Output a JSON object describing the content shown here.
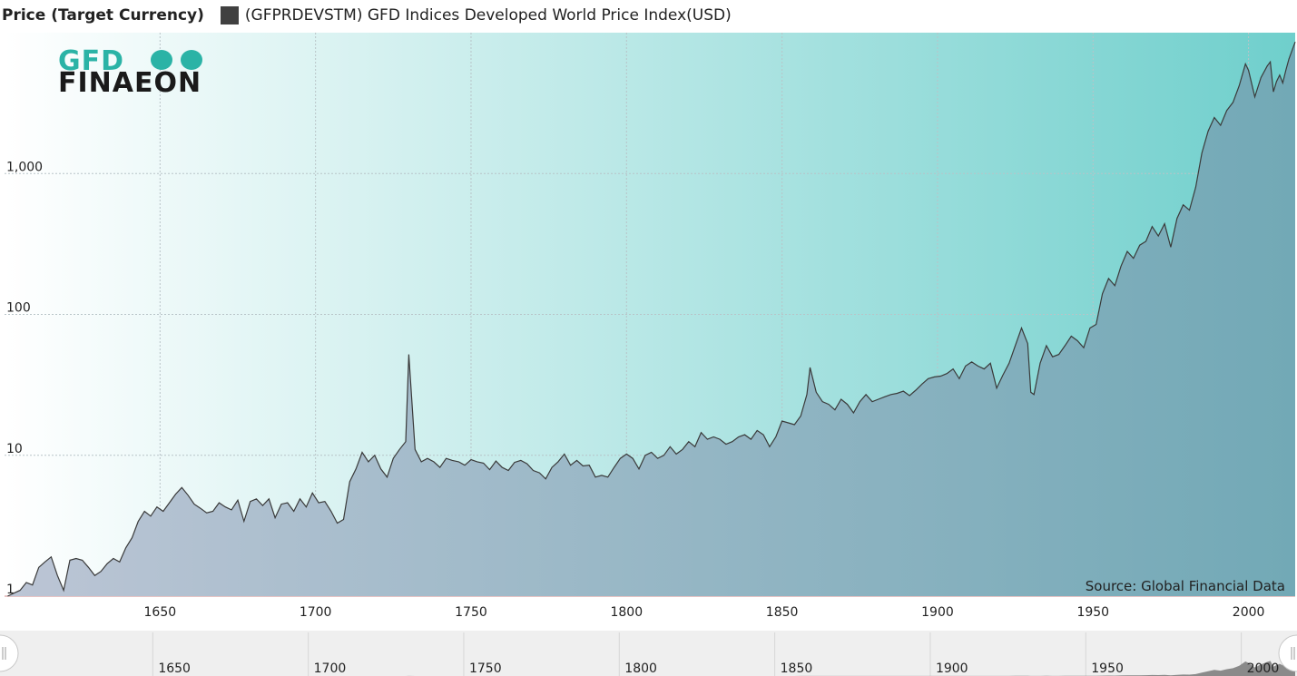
{
  "header": {
    "y_axis_title": "Price (Target Currency)",
    "legend_label": "(GFPRDEVSTM) GFD Indices Developed World Price Index(USD)",
    "legend_color": "#404040"
  },
  "logo": {
    "line1": "GFD",
    "line2": "FINAEON"
  },
  "source_note": "Source: Global Financial Data",
  "colors": {
    "background_left": "#ffffff",
    "background_right": "#6fcfcc",
    "area_left": "#bcc5d5",
    "area_right": "#72a9b6",
    "line": "#3a3a3a",
    "navigator_bg": "#efefef"
  },
  "chart_data": {
    "type": "area",
    "scale": "log",
    "grid": true,
    "xlabel": "",
    "ylabel": "Price (Target Currency)",
    "xlim": [
      1600,
      2015
    ],
    "ylim": [
      1,
      10000
    ],
    "x_ticks": [
      1650,
      1700,
      1750,
      1800,
      1850,
      1900,
      1950,
      2000
    ],
    "y_ticks": [
      {
        "value": 1,
        "label": "1"
      },
      {
        "value": 10,
        "label": "10"
      },
      {
        "value": 100,
        "label": "100"
      },
      {
        "value": 1000,
        "label": "1,000"
      }
    ],
    "navigator_ticks": [
      1650,
      1700,
      1750,
      1800,
      1850,
      1900,
      1950,
      2000
    ],
    "series": [
      {
        "name": "(GFPRDEVSTM) GFD Indices Developed World Price Index(USD)",
        "points": [
          [
            1601,
            1.0
          ],
          [
            1603,
            1.05
          ],
          [
            1605,
            1.1
          ],
          [
            1607,
            1.25
          ],
          [
            1609,
            1.2
          ],
          [
            1611,
            1.6
          ],
          [
            1613,
            1.75
          ],
          [
            1615,
            1.9
          ],
          [
            1617,
            1.4
          ],
          [
            1619,
            1.1
          ],
          [
            1621,
            1.8
          ],
          [
            1623,
            1.85
          ],
          [
            1625,
            1.8
          ],
          [
            1627,
            1.6
          ],
          [
            1629,
            1.4
          ],
          [
            1631,
            1.5
          ],
          [
            1633,
            1.7
          ],
          [
            1635,
            1.85
          ],
          [
            1637,
            1.75
          ],
          [
            1639,
            2.2
          ],
          [
            1641,
            2.6
          ],
          [
            1643,
            3.4
          ],
          [
            1645,
            4.0
          ],
          [
            1647,
            3.7
          ],
          [
            1649,
            4.3
          ],
          [
            1651,
            4.0
          ],
          [
            1653,
            4.6
          ],
          [
            1655,
            5.3
          ],
          [
            1657,
            5.9
          ],
          [
            1659,
            5.2
          ],
          [
            1661,
            4.5
          ],
          [
            1663,
            4.2
          ],
          [
            1665,
            3.9
          ],
          [
            1667,
            4.0
          ],
          [
            1669,
            4.6
          ],
          [
            1671,
            4.3
          ],
          [
            1673,
            4.1
          ],
          [
            1675,
            4.8
          ],
          [
            1677,
            3.4
          ],
          [
            1679,
            4.7
          ],
          [
            1681,
            4.9
          ],
          [
            1683,
            4.4
          ],
          [
            1685,
            4.9
          ],
          [
            1687,
            3.6
          ],
          [
            1689,
            4.5
          ],
          [
            1691,
            4.6
          ],
          [
            1693,
            4.0
          ],
          [
            1695,
            4.9
          ],
          [
            1697,
            4.3
          ],
          [
            1699,
            5.4
          ],
          [
            1701,
            4.6
          ],
          [
            1703,
            4.7
          ],
          [
            1705,
            4.0
          ],
          [
            1707,
            3.3
          ],
          [
            1709,
            3.5
          ],
          [
            1711,
            6.5
          ],
          [
            1713,
            8.0
          ],
          [
            1715,
            10.5
          ],
          [
            1717,
            9.0
          ],
          [
            1719,
            10.0
          ],
          [
            1721,
            8.0
          ],
          [
            1723,
            7.0
          ],
          [
            1725,
            9.5
          ],
          [
            1727,
            11.0
          ],
          [
            1729,
            12.5
          ],
          [
            1730,
            52.0
          ],
          [
            1732,
            11.0
          ],
          [
            1734,
            9.0
          ],
          [
            1736,
            9.5
          ],
          [
            1738,
            9.0
          ],
          [
            1740,
            8.2
          ],
          [
            1742,
            9.5
          ],
          [
            1744,
            9.2
          ],
          [
            1746,
            9.0
          ],
          [
            1748,
            8.5
          ],
          [
            1750,
            9.3
          ],
          [
            1752,
            9.0
          ],
          [
            1754,
            8.8
          ],
          [
            1756,
            7.9
          ],
          [
            1758,
            9.1
          ],
          [
            1760,
            8.2
          ],
          [
            1762,
            7.8
          ],
          [
            1764,
            8.9
          ],
          [
            1766,
            9.2
          ],
          [
            1768,
            8.7
          ],
          [
            1770,
            7.8
          ],
          [
            1772,
            7.5
          ],
          [
            1774,
            6.8
          ],
          [
            1776,
            8.2
          ],
          [
            1778,
            9.0
          ],
          [
            1780,
            10.2
          ],
          [
            1782,
            8.5
          ],
          [
            1784,
            9.2
          ],
          [
            1786,
            8.4
          ],
          [
            1788,
            8.5
          ],
          [
            1790,
            7.0
          ],
          [
            1792,
            7.2
          ],
          [
            1794,
            7.0
          ],
          [
            1796,
            8.2
          ],
          [
            1798,
            9.5
          ],
          [
            1800,
            10.2
          ],
          [
            1802,
            9.5
          ],
          [
            1804,
            8.0
          ],
          [
            1806,
            10.0
          ],
          [
            1808,
            10.5
          ],
          [
            1810,
            9.5
          ],
          [
            1812,
            10.0
          ],
          [
            1814,
            11.5
          ],
          [
            1816,
            10.2
          ],
          [
            1818,
            11.0
          ],
          [
            1820,
            12.5
          ],
          [
            1822,
            11.5
          ],
          [
            1824,
            14.5
          ],
          [
            1826,
            13.0
          ],
          [
            1828,
            13.5
          ],
          [
            1830,
            13.0
          ],
          [
            1832,
            12.0
          ],
          [
            1834,
            12.5
          ],
          [
            1836,
            13.5
          ],
          [
            1838,
            14.0
          ],
          [
            1840,
            13.0
          ],
          [
            1842,
            15.0
          ],
          [
            1844,
            14.0
          ],
          [
            1846,
            11.5
          ],
          [
            1848,
            13.5
          ],
          [
            1850,
            17.5
          ],
          [
            1852,
            17.0
          ],
          [
            1854,
            16.5
          ],
          [
            1856,
            19.0
          ],
          [
            1858,
            27.0
          ],
          [
            1859,
            42.0
          ],
          [
            1861,
            28.0
          ],
          [
            1863,
            24.0
          ],
          [
            1865,
            23.0
          ],
          [
            1867,
            21.0
          ],
          [
            1869,
            25.0
          ],
          [
            1871,
            23.0
          ],
          [
            1873,
            20.0
          ],
          [
            1875,
            24.0
          ],
          [
            1877,
            27.0
          ],
          [
            1879,
            24.0
          ],
          [
            1881,
            25.0
          ],
          [
            1883,
            26.0
          ],
          [
            1885,
            27.0
          ],
          [
            1887,
            27.5
          ],
          [
            1889,
            28.5
          ],
          [
            1891,
            26.5
          ],
          [
            1893,
            29.0
          ],
          [
            1895,
            32.0
          ],
          [
            1897,
            35.0
          ],
          [
            1899,
            36.0
          ],
          [
            1901,
            36.5
          ],
          [
            1903,
            38.0
          ],
          [
            1905,
            41.0
          ],
          [
            1907,
            35.0
          ],
          [
            1909,
            43.0
          ],
          [
            1911,
            46.0
          ],
          [
            1913,
            43.0
          ],
          [
            1915,
            41.0
          ],
          [
            1917,
            45.0
          ],
          [
            1919,
            30.0
          ],
          [
            1921,
            37.0
          ],
          [
            1923,
            45.0
          ],
          [
            1925,
            60.0
          ],
          [
            1927,
            80.0
          ],
          [
            1929,
            62.0
          ],
          [
            1930,
            28.0
          ],
          [
            1931,
            27.0
          ],
          [
            1933,
            45.0
          ],
          [
            1935,
            60.0
          ],
          [
            1937,
            50.0
          ],
          [
            1939,
            52.0
          ],
          [
            1941,
            60.0
          ],
          [
            1943,
            70.0
          ],
          [
            1945,
            65.0
          ],
          [
            1947,
            58.0
          ],
          [
            1949,
            80.0
          ],
          [
            1951,
            85.0
          ],
          [
            1953,
            140.0
          ],
          [
            1955,
            180.0
          ],
          [
            1957,
            160.0
          ],
          [
            1959,
            220.0
          ],
          [
            1961,
            280.0
          ],
          [
            1963,
            250.0
          ],
          [
            1965,
            310.0
          ],
          [
            1967,
            330.0
          ],
          [
            1969,
            420.0
          ],
          [
            1971,
            360.0
          ],
          [
            1973,
            440.0
          ],
          [
            1975,
            300.0
          ],
          [
            1977,
            480.0
          ],
          [
            1979,
            600.0
          ],
          [
            1981,
            550.0
          ],
          [
            1983,
            800.0
          ],
          [
            1985,
            1400.0
          ],
          [
            1987,
            2000.0
          ],
          [
            1989,
            2500.0
          ],
          [
            1991,
            2200.0
          ],
          [
            1993,
            2800.0
          ],
          [
            1995,
            3200.0
          ],
          [
            1997,
            4200.0
          ],
          [
            1999,
            6000.0
          ],
          [
            2000,
            5400.0
          ],
          [
            2002,
            3500.0
          ],
          [
            2004,
            4800.0
          ],
          [
            2006,
            5800.0
          ],
          [
            2007,
            6200.0
          ],
          [
            2008,
            3800.0
          ],
          [
            2009,
            4500.0
          ],
          [
            2010,
            5000.0
          ],
          [
            2011,
            4400.0
          ],
          [
            2012,
            5400.0
          ],
          [
            2013,
            6500.0
          ],
          [
            2014,
            7500.0
          ],
          [
            2015,
            8600.0
          ]
        ]
      }
    ]
  }
}
